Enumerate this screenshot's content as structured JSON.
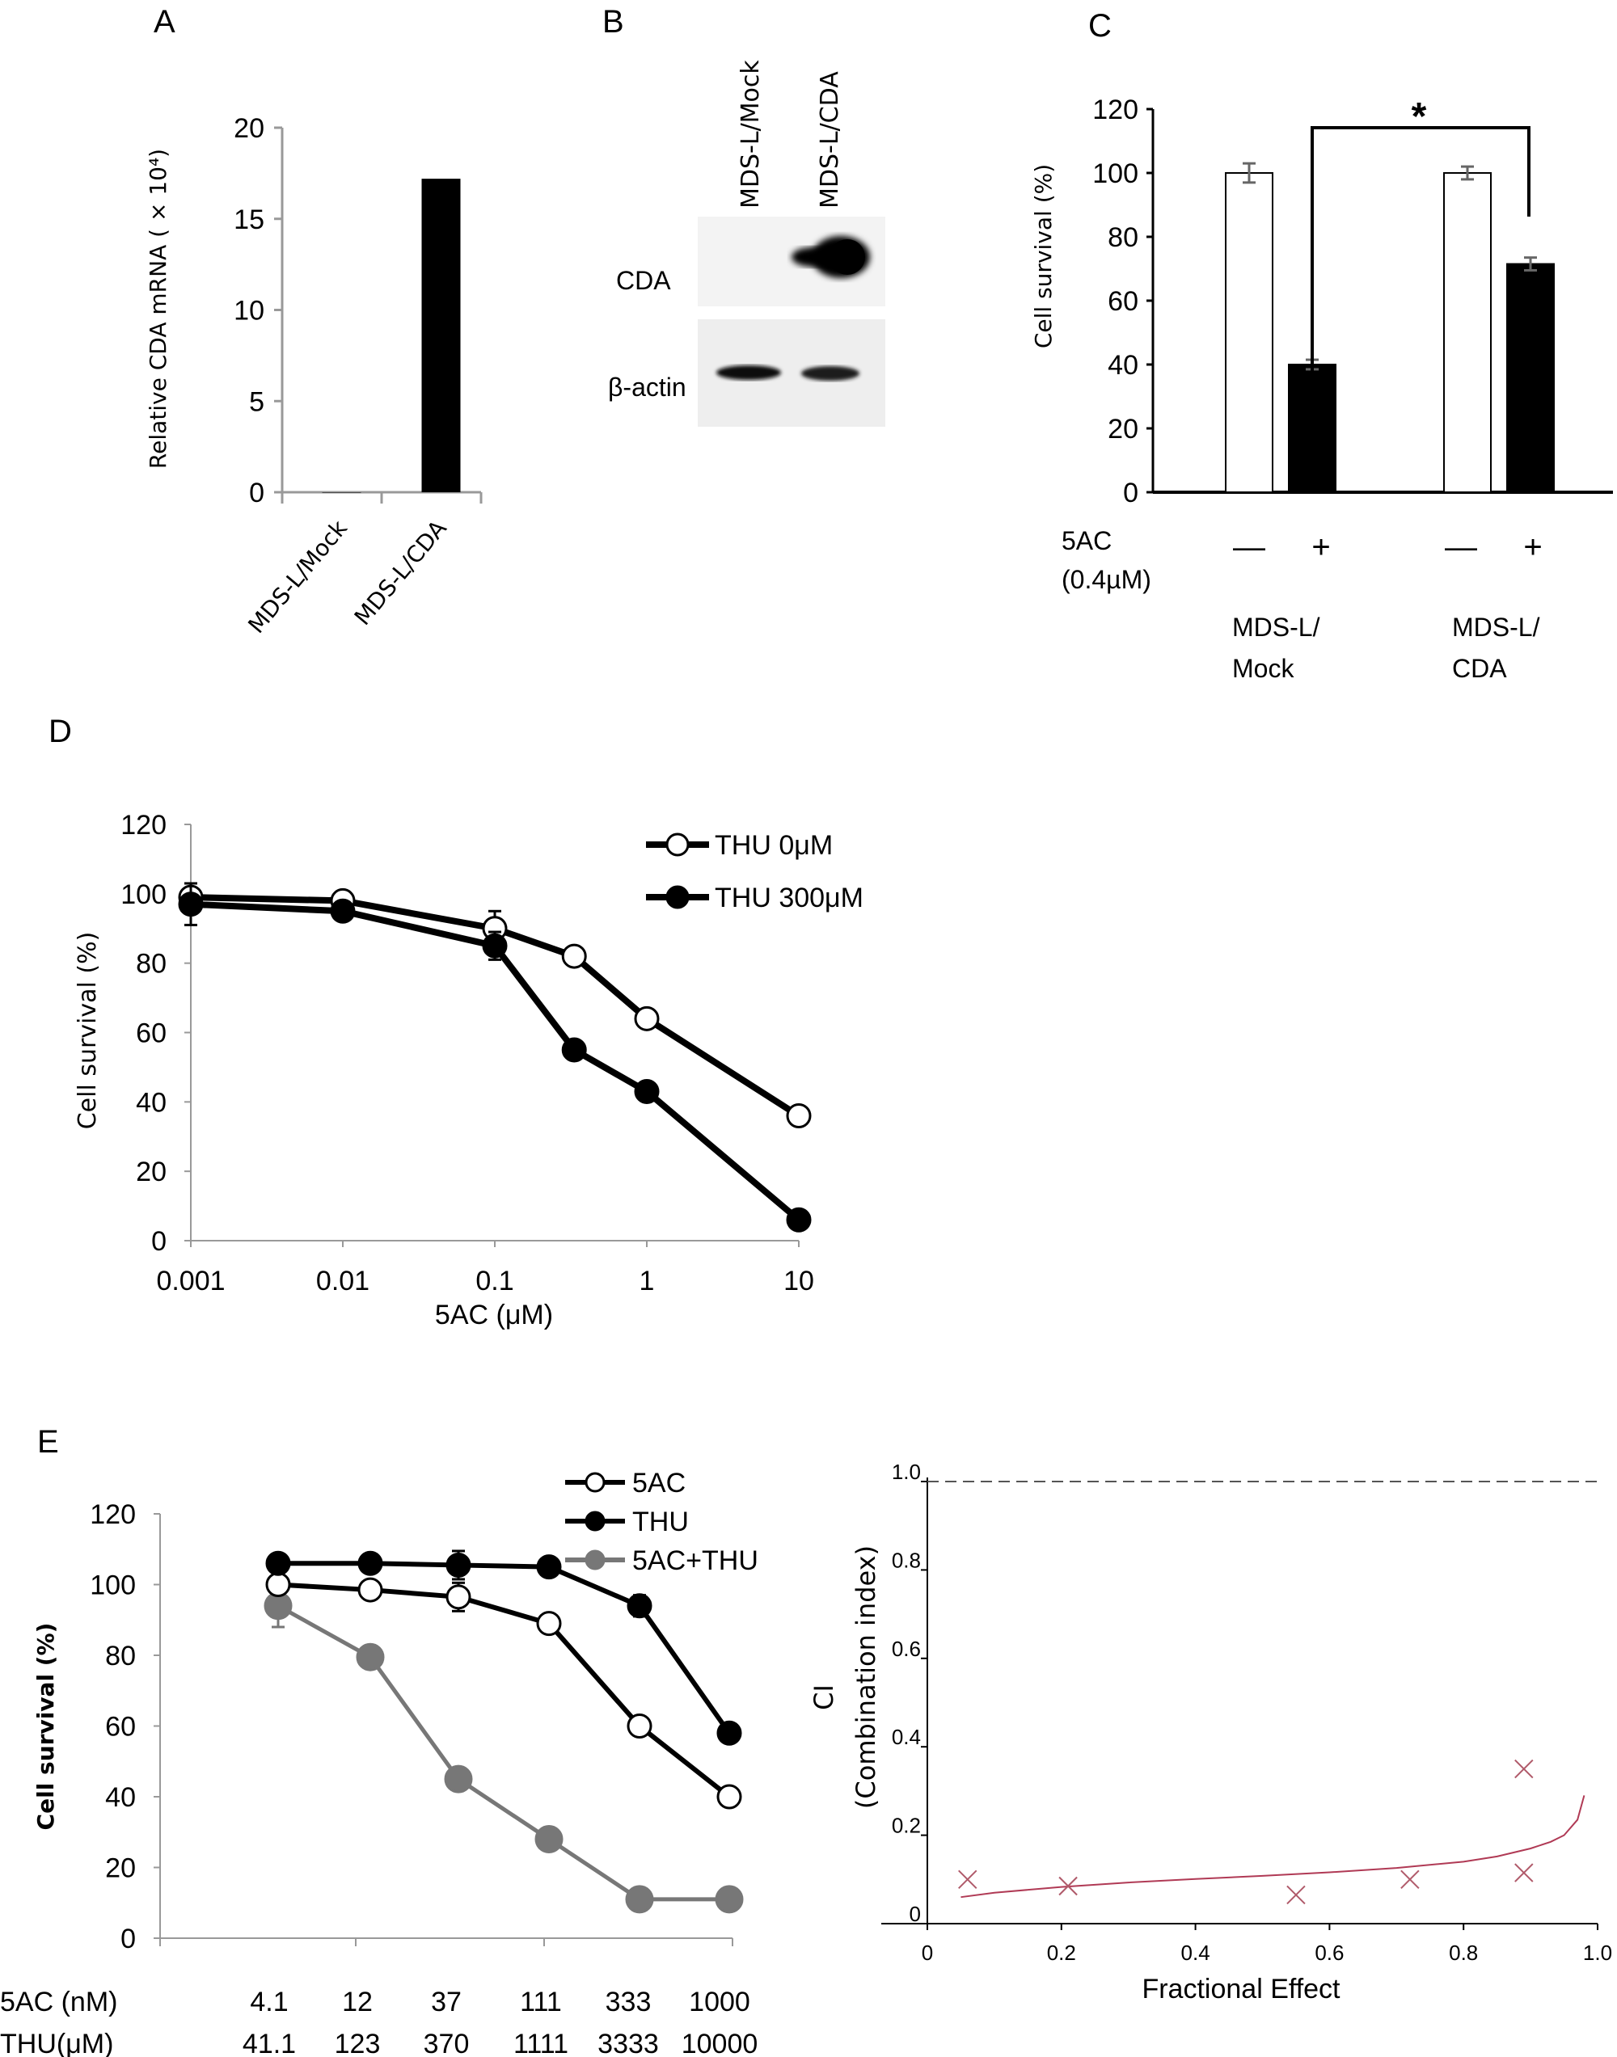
{
  "panel_letters": {
    "A": "A",
    "B": "B",
    "C": "C",
    "D": "D",
    "E": "E"
  },
  "blot": {
    "lanes": [
      "MDS-L/Mock",
      "MDS-L/CDA"
    ],
    "rows": [
      "CDA",
      "β-actin"
    ],
    "band_intensity": {
      "CDA": [
        0,
        1
      ],
      "β-actin": [
        0.9,
        0.85
      ]
    }
  },
  "chart_data": [
    {
      "id": "A",
      "type": "bar",
      "categories": [
        "MDS-L/Mock",
        "MDS-L/CDA"
      ],
      "values": [
        0,
        17.2
      ],
      "xlabel": "",
      "ylabel": "Relative CDA mRNA ( × 10⁴)",
      "ylim": [
        0,
        20
      ],
      "yticks": [
        "0",
        "5",
        "10",
        "15",
        "20"
      ],
      "bar_color": "#000000",
      "grid": false
    },
    {
      "id": "C",
      "type": "bar",
      "categories": [
        "MDS-L/Mock 5AC−",
        "MDS-L/Mock 5AC+",
        "MDS-L/CDA 5AC−",
        "MDS-L/CDA 5AC+"
      ],
      "values": [
        100,
        40,
        100,
        71.5
      ],
      "errors": [
        3,
        1.5,
        2,
        2
      ],
      "fills": [
        "#ffffff",
        "#000000",
        "#ffffff",
        "#000000"
      ],
      "ylabel": "Cell survival  (%)",
      "ylim": [
        0,
        120
      ],
      "yticks": [
        "0",
        "20",
        "40",
        "60",
        "80",
        "100",
        "120"
      ],
      "treatment_label": [
        "5AC",
        "(0.4µM)"
      ],
      "treatment_signs": [
        "—",
        "+",
        "—",
        "+"
      ],
      "group_labels": [
        [
          "MDS-L/",
          "Mock"
        ],
        [
          "MDS-L/",
          "CDA"
        ]
      ],
      "significance": "*",
      "grid": false
    },
    {
      "id": "D",
      "type": "line",
      "x_scale": "log",
      "x": [
        0.001,
        0.01,
        0.1,
        0.333,
        1,
        10
      ],
      "xticks": [
        "0.001",
        "0.01",
        "0.1",
        "1",
        "10"
      ],
      "series": [
        {
          "name": "THU 0μM",
          "values": [
            99,
            98,
            90,
            82,
            64,
            36
          ],
          "errors": [
            2,
            1,
            5,
            1,
            2,
            1
          ],
          "marker": "open-circle",
          "color": "#000000"
        },
        {
          "name": "THU 300μM",
          "values": [
            97,
            95,
            85,
            55,
            43,
            6
          ],
          "errors": [
            6,
            2,
            4,
            1,
            1,
            1
          ],
          "marker": "filled-circle",
          "color": "#000000"
        }
      ],
      "xlabel": "5AC (μM)",
      "ylabel": "Cell survival (%)",
      "ylim": [
        0,
        120
      ],
      "yticks": [
        "0",
        "20",
        "40",
        "60",
        "80",
        "100",
        "120"
      ],
      "legend": "top-right",
      "grid": false
    },
    {
      "id": "E-left",
      "type": "line",
      "categories_rows": [
        {
          "label": "5AC (nM)",
          "values": [
            "4.1",
            "12",
            "37",
            "111",
            "333",
            "1000"
          ]
        },
        {
          "label": "THU(μM)",
          "values": [
            "41.1",
            "123",
            "370",
            "1111",
            "3333",
            "10000"
          ]
        }
      ],
      "series": [
        {
          "name": "5AC",
          "values": [
            100,
            98.5,
            96.5,
            89,
            60,
            40
          ],
          "errors": [
            1,
            1,
            4,
            1,
            1,
            1
          ],
          "marker": "open-circle",
          "color": "#000000"
        },
        {
          "name": "THU",
          "values": [
            106,
            106,
            105.5,
            105,
            94,
            58
          ],
          "errors": [
            1,
            1,
            4,
            1,
            3,
            1
          ],
          "marker": "filled-circle",
          "color": "#000000"
        },
        {
          "name": "5AC+THU",
          "values": [
            94,
            79.5,
            45,
            28,
            11,
            11
          ],
          "errors": [
            6,
            1,
            1,
            1,
            1,
            1
          ],
          "marker": "filled-circle",
          "color": "#777777"
        }
      ],
      "ylabel": "Cell survival  (%)",
      "ylim": [
        0,
        120
      ],
      "yticks": [
        "0",
        "20",
        "40",
        "60",
        "80",
        "100",
        "120"
      ],
      "legend": "top-right",
      "grid": false
    },
    {
      "id": "E-right",
      "type": "scatter",
      "points": [
        {
          "x": 0.06,
          "y": 0.1
        },
        {
          "x": 0.21,
          "y": 0.085
        },
        {
          "x": 0.55,
          "y": 0.065
        },
        {
          "x": 0.72,
          "y": 0.1
        },
        {
          "x": 0.89,
          "y": 0.35
        },
        {
          "x": 0.89,
          "y": 0.115
        }
      ],
      "fit_curve": {
        "x": [
          0.05,
          0.1,
          0.2,
          0.3,
          0.4,
          0.5,
          0.6,
          0.7,
          0.8,
          0.85,
          0.9,
          0.93,
          0.95,
          0.97,
          0.98
        ],
        "y": [
          0.06,
          0.07,
          0.083,
          0.093,
          0.101,
          0.108,
          0.116,
          0.126,
          0.14,
          0.152,
          0.17,
          0.185,
          0.2,
          0.235,
          0.29
        ]
      },
      "reference_line": 1.0,
      "xlabel": "Fractional Effect",
      "ylabel": [
        "CI",
        "(Combination index)"
      ],
      "xlim": [
        0,
        1.0
      ],
      "ylim": [
        0,
        1.0
      ],
      "xticks": [
        "0",
        "0.2",
        "0.4",
        "0.6",
        "0.8",
        "1.0"
      ],
      "yticks": [
        "0",
        "0.2",
        "0.4",
        "0.6",
        "0.8",
        "1.0"
      ],
      "marker_color": "#b05a6a",
      "curve_color": "#b03a55",
      "grid": false
    }
  ]
}
